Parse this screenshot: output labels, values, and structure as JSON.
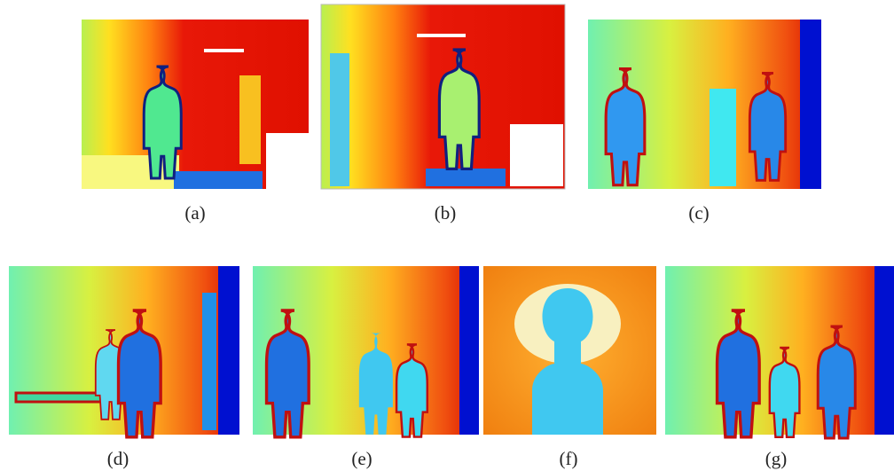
{
  "captions": [
    "(a)",
    "(b)",
    "(c)",
    "(d)",
    "(e)",
    "(f)",
    "(g)"
  ]
}
